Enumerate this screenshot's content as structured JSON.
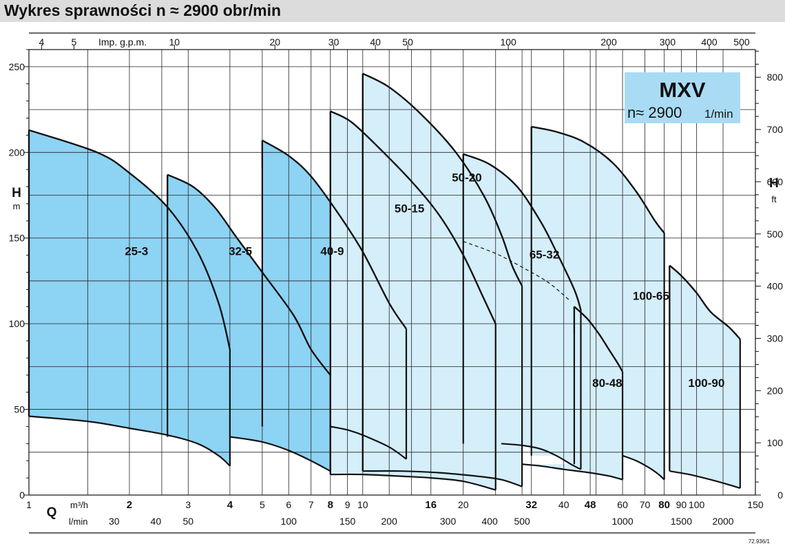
{
  "page": {
    "title": "Wykres sprawności n ≈ 2900 obr/min",
    "code": "72.936/1"
  },
  "chart_data": {
    "type": "area",
    "title": "Wykres sprawności n ≈ 2900 obr/min",
    "product": {
      "name": "MXV",
      "speed_label": "n≈ 2900",
      "speed_unit": "1/min"
    },
    "axes": {
      "q_m3h": {
        "label": "m³/h",
        "scale": "log",
        "range": [
          1,
          150
        ],
        "ticks": [
          1,
          2,
          3,
          4,
          5,
          6,
          7,
          8,
          9,
          10,
          16,
          20,
          32,
          40,
          48,
          60,
          70,
          80,
          90,
          100,
          150
        ],
        "tick_labels": [
          "1",
          "2",
          "3",
          "4",
          "5",
          "6",
          "7",
          "8",
          "9",
          "10",
          "16",
          "20",
          "32",
          "40",
          "48",
          "60",
          "70",
          "80",
          "90",
          "100",
          "150"
        ],
        "bold": [
          2,
          4,
          8,
          16,
          32,
          48,
          80
        ]
      },
      "q_lmin": {
        "label": "l/min",
        "scale": "log",
        "ticks": [
          30,
          40,
          50,
          100,
          150,
          200,
          300,
          400,
          500,
          1000,
          1500,
          2000
        ],
        "tick_labels": [
          "30",
          "40",
          "50",
          "100",
          "150",
          "200",
          "300",
          "400",
          "500",
          "1000",
          "1500",
          "2000"
        ]
      },
      "q_gpm": {
        "label": "Imp. g.p.m.",
        "scale": "log",
        "ticks": [
          4,
          5,
          10,
          20,
          30,
          40,
          50,
          100,
          200,
          300,
          400,
          500
        ],
        "tick_labels": [
          "4",
          "5",
          "10",
          "20",
          "30",
          "40",
          "50",
          "100",
          "200",
          "300",
          "400",
          "500"
        ]
      },
      "h_m": {
        "label": "H",
        "unit": "m",
        "range": [
          0,
          260
        ],
        "ticks": [
          0,
          50,
          100,
          150,
          200,
          250
        ],
        "tick_labels": [
          "0",
          "50",
          "100",
          "150",
          "200",
          "250"
        ]
      },
      "h_ft": {
        "label": "H",
        "unit": "ft",
        "ticks": [
          0,
          100,
          200,
          300,
          400,
          500,
          600,
          700,
          800
        ],
        "tick_labels": [
          "0",
          "100",
          "200",
          "300",
          "400",
          "500",
          "600",
          "700",
          "800"
        ]
      },
      "q_label": "Q"
    },
    "grid": true,
    "series": [
      {
        "name": "25-3",
        "label_at": [
          2.1,
          140
        ],
        "top": [
          [
            1,
            213
          ],
          [
            1.6,
            200
          ],
          [
            2.0,
            188
          ],
          [
            2.6,
            168
          ],
          [
            3.2,
            142
          ],
          [
            3.7,
            112
          ],
          [
            4.0,
            85
          ]
        ],
        "bottom": [
          [
            1,
            46
          ],
          [
            1.5,
            43
          ],
          [
            2.0,
            39
          ],
          [
            2.6,
            35
          ],
          [
            3.2,
            30
          ],
          [
            3.7,
            23
          ],
          [
            4.0,
            17
          ]
        ]
      },
      {
        "name": "32-5",
        "label_at": [
          4.3,
          140
        ],
        "top": [
          [
            2.6,
            187
          ],
          [
            3.1,
            180
          ],
          [
            3.6,
            168
          ],
          [
            4.2,
            150
          ],
          [
            5,
            130
          ],
          [
            6.2,
            105
          ],
          [
            7,
            85
          ],
          [
            8,
            70
          ]
        ],
        "bottom": [
          [
            4.0,
            34
          ],
          [
            5,
            31
          ],
          [
            6,
            26
          ],
          [
            7,
            20
          ],
          [
            8,
            14
          ]
        ]
      },
      {
        "name": "40-9",
        "label_at": [
          8.1,
          140
        ],
        "top": [
          [
            5,
            207
          ],
          [
            6,
            198
          ],
          [
            7,
            186
          ],
          [
            8.4,
            165
          ],
          [
            10,
            142
          ],
          [
            12,
            112
          ],
          [
            13.5,
            97
          ]
        ],
        "bottom": [
          [
            8,
            40
          ],
          [
            9,
            38
          ],
          [
            10,
            35
          ],
          [
            12,
            28
          ],
          [
            13.5,
            21
          ]
        ]
      },
      {
        "name": "50-15",
        "label_at": [
          13.8,
          165
        ],
        "top": [
          [
            8,
            224
          ],
          [
            9.2,
            218
          ],
          [
            11,
            204
          ],
          [
            14,
            183
          ],
          [
            17,
            163
          ],
          [
            20,
            140
          ],
          [
            23,
            115
          ],
          [
            25,
            100
          ]
        ],
        "bottom": [
          [
            8,
            12
          ],
          [
            10,
            12
          ],
          [
            13,
            11
          ],
          [
            16,
            10
          ],
          [
            20,
            8
          ],
          [
            25,
            3
          ]
        ]
      },
      {
        "name": "50-20",
        "label_at": [
          20.5,
          183
        ],
        "top": [
          [
            10,
            246
          ],
          [
            12,
            238
          ],
          [
            15,
            222
          ],
          [
            19,
            200
          ],
          [
            23,
            175
          ],
          [
            26,
            152
          ],
          [
            28,
            134
          ],
          [
            30,
            122
          ]
        ],
        "bottom": [
          [
            10,
            14
          ],
          [
            13,
            14
          ],
          [
            17,
            13
          ],
          [
            22,
            11
          ],
          [
            26,
            9
          ],
          [
            30,
            5
          ]
        ]
      },
      {
        "name": "65-32",
        "label_at": [
          35,
          138
        ],
        "top": [
          [
            20,
            199
          ],
          [
            24,
            193
          ],
          [
            29,
            180
          ],
          [
            34,
            160
          ],
          [
            38,
            142
          ],
          [
            43,
            120
          ],
          [
            45,
            108
          ]
        ],
        "bottom": [
          [
            26,
            30
          ],
          [
            30,
            29
          ],
          [
            34,
            27
          ],
          [
            38,
            23
          ],
          [
            42,
            18
          ],
          [
            45,
            15
          ]
        ]
      },
      {
        "name": "80-48",
        "label_at": [
          54,
          63
        ],
        "top": [
          [
            43,
            110
          ],
          [
            47,
            103
          ],
          [
            51,
            94
          ],
          [
            55,
            84
          ],
          [
            58,
            77
          ],
          [
            60,
            72
          ]
        ],
        "bottom": [
          [
            30,
            18
          ],
          [
            34,
            17
          ],
          [
            40,
            15
          ],
          [
            48,
            13
          ],
          [
            55,
            11
          ],
          [
            60,
            9
          ]
        ]
      },
      {
        "name": "100-65",
        "label_at": [
          73,
          114
        ],
        "top": [
          [
            32,
            215
          ],
          [
            38,
            212
          ],
          [
            46,
            206
          ],
          [
            56,
            194
          ],
          [
            66,
            177
          ],
          [
            75,
            160
          ],
          [
            80,
            153
          ]
        ],
        "bottom": [
          [
            60,
            23
          ],
          [
            66,
            20
          ],
          [
            72,
            16
          ],
          [
            77,
            12
          ],
          [
            80,
            9
          ]
        ]
      },
      {
        "name": "100-90",
        "label_at": [
          107,
          63
        ],
        "top": [
          [
            83,
            134
          ],
          [
            90,
            128
          ],
          [
            100,
            118
          ],
          [
            110,
            107
          ],
          [
            125,
            98
          ],
          [
            135,
            91
          ]
        ],
        "bottom": [
          [
            83,
            14
          ],
          [
            95,
            12
          ],
          [
            105,
            10
          ],
          [
            115,
            8
          ],
          [
            125,
            6
          ],
          [
            135,
            4
          ]
        ]
      }
    ],
    "dashed_curve": [
      [
        20,
        148
      ],
      [
        25,
        141
      ],
      [
        30,
        133
      ],
      [
        36,
        124
      ],
      [
        42,
        113
      ]
    ]
  }
}
